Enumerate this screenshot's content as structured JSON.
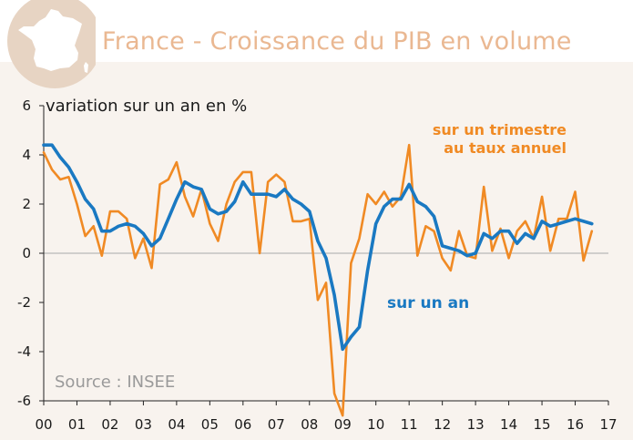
{
  "header": {
    "title": "France - Croissance du PIB en volume",
    "logo_icon": "france-map-icon"
  },
  "colors": {
    "orange": "#f08a24",
    "blue": "#1a79c2",
    "title": "#eab892",
    "logo_circle": "#e7d4c3",
    "background": "#f8f3ee"
  },
  "chart_data": {
    "type": "line",
    "title": "France - Croissance du PIB en volume",
    "ylabel": "variation sur un an en %",
    "ylim": [
      -6,
      6
    ],
    "yticks": [
      -6,
      -4,
      -2,
      0,
      2,
      4,
      6
    ],
    "xlim": [
      0,
      17
    ],
    "xticks": [
      "00",
      "01",
      "02",
      "03",
      "04",
      "05",
      "06",
      "07",
      "08",
      "09",
      "10",
      "11",
      "12",
      "13",
      "14",
      "15",
      "16",
      "17"
    ],
    "source": "Source : INSEE",
    "series": [
      {
        "name": "sur un trimestre au taux annuel",
        "label_lines": [
          "sur un trimestre",
          "au taux annuel"
        ],
        "color": "#f08a24",
        "x": [
          0,
          0.25,
          0.5,
          0.75,
          1,
          1.25,
          1.5,
          1.75,
          2,
          2.25,
          2.5,
          2.75,
          3,
          3.25,
          3.5,
          3.75,
          4,
          4.25,
          4.5,
          4.75,
          5,
          5.25,
          5.5,
          5.75,
          6,
          6.25,
          6.5,
          6.75,
          7,
          7.25,
          7.5,
          7.75,
          8,
          8.25,
          8.5,
          8.75,
          9,
          9.25,
          9.5,
          9.75,
          10,
          10.25,
          10.5,
          10.75,
          11,
          11.25,
          11.5,
          11.75,
          12,
          12.25,
          12.5,
          12.75,
          13,
          13.25,
          13.5,
          13.75,
          14,
          14.25,
          14.5,
          14.75,
          15,
          15.25,
          15.5,
          15.75,
          16,
          16.25,
          16.5
        ],
        "values": [
          4.1,
          3.4,
          3.0,
          3.1,
          2.0,
          0.7,
          1.1,
          -0.1,
          1.7,
          1.7,
          1.4,
          -0.2,
          0.6,
          -0.6,
          2.8,
          3.0,
          3.7,
          2.3,
          1.5,
          2.6,
          1.2,
          0.5,
          2.0,
          2.9,
          3.3,
          3.3,
          0.0,
          2.9,
          3.2,
          2.9,
          1.3,
          1.3,
          1.4,
          -1.9,
          -1.2,
          -5.7,
          -6.6,
          -0.4,
          0.6,
          2.4,
          2.0,
          2.5,
          1.9,
          2.3,
          4.4,
          -0.1,
          1.1,
          0.9,
          -0.2,
          -0.7,
          0.9,
          -0.1,
          -0.2,
          2.7,
          0.1,
          1.0,
          -0.2,
          0.9,
          1.3,
          0.6,
          2.3,
          0.1,
          1.4,
          1.4,
          2.5,
          -0.3,
          0.9
        ]
      },
      {
        "name": "sur un an",
        "label_lines": [
          "sur un an"
        ],
        "color": "#1a79c2",
        "x": [
          0,
          0.25,
          0.5,
          0.75,
          1,
          1.25,
          1.5,
          1.75,
          2,
          2.25,
          2.5,
          2.75,
          3,
          3.25,
          3.5,
          3.75,
          4,
          4.25,
          4.5,
          4.75,
          5,
          5.25,
          5.5,
          5.75,
          6,
          6.25,
          6.5,
          6.75,
          7,
          7.25,
          7.5,
          7.75,
          8,
          8.25,
          8.5,
          8.75,
          9,
          9.25,
          9.5,
          9.75,
          10,
          10.25,
          10.5,
          10.75,
          11,
          11.25,
          11.5,
          11.75,
          12,
          12.25,
          12.5,
          12.75,
          13,
          13.25,
          13.5,
          13.75,
          14,
          14.25,
          14.5,
          14.75,
          15,
          15.25,
          15.5,
          15.75,
          16,
          16.25,
          16.5
        ],
        "values": [
          4.4,
          4.4,
          3.9,
          3.5,
          2.9,
          2.2,
          1.8,
          0.9,
          0.9,
          1.1,
          1.2,
          1.1,
          0.8,
          0.3,
          0.6,
          1.4,
          2.2,
          2.9,
          2.7,
          2.6,
          1.8,
          1.6,
          1.7,
          2.1,
          2.9,
          2.4,
          2.4,
          2.4,
          2.3,
          2.6,
          2.2,
          2.0,
          1.7,
          0.5,
          -0.2,
          -1.7,
          -3.9,
          -3.4,
          -3.0,
          -0.7,
          1.2,
          1.9,
          2.2,
          2.2,
          2.8,
          2.1,
          1.9,
          1.5,
          0.3,
          0.2,
          0.1,
          -0.1,
          0.0,
          0.8,
          0.6,
          0.9,
          0.9,
          0.4,
          0.8,
          0.6,
          1.3,
          1.1,
          1.2,
          1.3,
          1.4,
          1.3,
          1.2
        ]
      }
    ]
  }
}
